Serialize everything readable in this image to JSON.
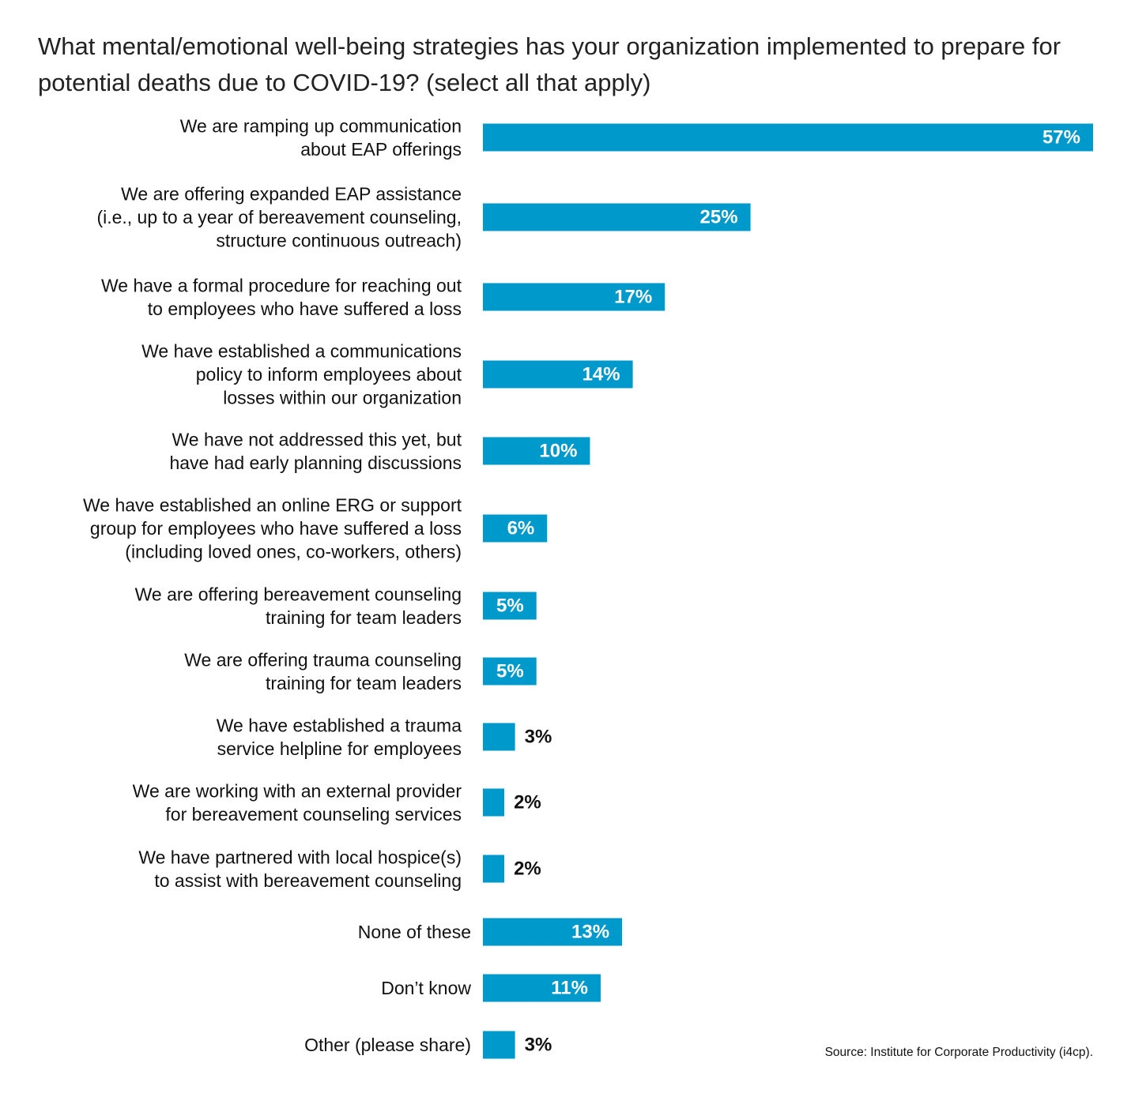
{
  "chart_data": {
    "type": "bar",
    "orientation": "horizontal",
    "title": "What mental/emotional well-being strategies has your organization implemented to prepare for potential deaths due to COVID-19? (select all that apply)",
    "categories": [
      [
        "We are ramping up communication",
        "about EAP offerings"
      ],
      [
        "We are offering expanded EAP assistance",
        "(i.e., up to a year of bereavement counseling,",
        "structure continuous outreach)"
      ],
      [
        "We have a formal procedure for reaching out",
        "to employees who have suffered a loss"
      ],
      [
        "We have established a communications",
        "policy to inform employees about",
        "losses within our organization"
      ],
      [
        "We have not addressed this yet, but",
        "have had early planning discussions"
      ],
      [
        "We have established an online ERG or support",
        "group for employees who have suffered a loss",
        "(including loved ones, co-workers, others)"
      ],
      [
        "We are offering bereavement counseling",
        "training for team leaders"
      ],
      [
        "We are offering trauma counseling",
        "training for team leaders"
      ],
      [
        "We have established a trauma",
        "service helpline for employees"
      ],
      [
        "We are working with an external provider",
        "for bereavement counseling services"
      ],
      [
        "We have partnered with local hospice(s)",
        "to assist with bereavement counseling"
      ],
      [
        "None of these"
      ],
      [
        "Don’t know"
      ],
      [
        "Other (please share)"
      ]
    ],
    "values": [
      57,
      25,
      17,
      14,
      10,
      6,
      5,
      5,
      3,
      2,
      2,
      13,
      11,
      3
    ],
    "value_labels": [
      "57%",
      "25%",
      "17%",
      "14%",
      "10%",
      "6%",
      "5%",
      "5%",
      "3%",
      "2%",
      "2%",
      "13%",
      "11%",
      "3%"
    ],
    "xlim": [
      0,
      57
    ],
    "bar_color": "#0099cc",
    "grid": false,
    "legend": "none",
    "source": "Source: Institute for Corporate Productivity (i4cp)."
  }
}
